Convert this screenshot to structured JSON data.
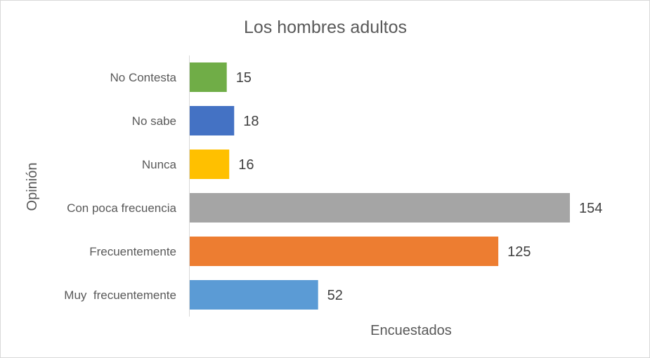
{
  "chart_data": {
    "type": "bar",
    "orientation": "horizontal",
    "title": "Los hombres adultos",
    "xlabel": "Encuestados",
    "ylabel": "Opinión",
    "categories": [
      "No Contesta",
      "No sabe",
      "Nunca",
      "Con poca frecuencia",
      "Frecuentemente",
      "Muy  frecuentemente"
    ],
    "values": [
      15,
      18,
      16,
      154,
      125,
      52
    ],
    "colors": [
      "#70ad47",
      "#4472c4",
      "#ffc000",
      "#a5a5a5",
      "#ed7d31",
      "#5b9bd5"
    ],
    "xlim": [
      0,
      154
    ],
    "grid": false,
    "legend": "none",
    "data_labels": true
  }
}
